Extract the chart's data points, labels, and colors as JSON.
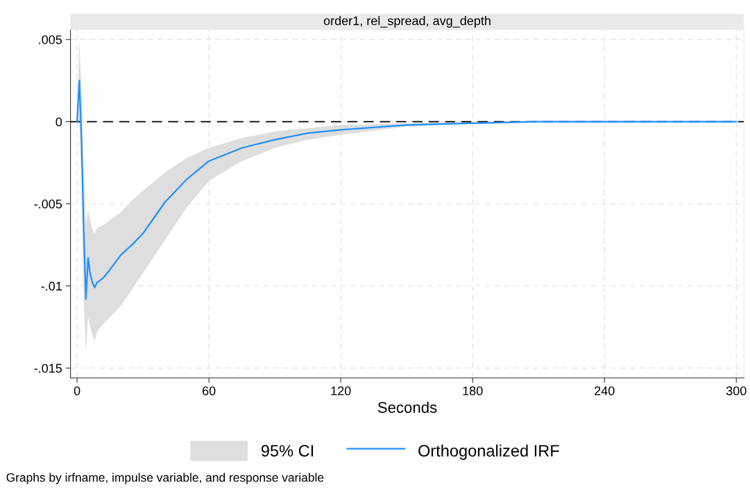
{
  "chart_data": {
    "type": "line",
    "title": "order1, rel_spread, avg_depth",
    "xlabel": "Seconds",
    "x": [
      0,
      1,
      2,
      3,
      4,
      5,
      6,
      7,
      8,
      9,
      10,
      12,
      15,
      20,
      25,
      30,
      40,
      50,
      60,
      75,
      90,
      105,
      120,
      150,
      180,
      210,
      240,
      270,
      300
    ],
    "series": [
      {
        "name": "Orthogonalized IRF",
        "color": "#1e90ff",
        "values": [
          0,
          0.0025,
          -0.001,
          -0.0065,
          -0.0108,
          -0.0083,
          -0.0093,
          -0.0098,
          -0.0101,
          -0.0098,
          -0.0097,
          -0.0095,
          -0.009,
          -0.0081,
          -0.0075,
          -0.0068,
          -0.0049,
          -0.0035,
          -0.0024,
          -0.0016,
          -0.0011,
          -0.0007,
          -0.0005,
          -0.0002,
          -0.0001,
          0,
          0,
          0,
          0
        ],
        "lower": [
          0,
          0,
          -0.004,
          -0.011,
          -0.0141,
          -0.0119,
          -0.0125,
          -0.013,
          -0.0134,
          -0.0128,
          -0.0126,
          -0.0123,
          -0.0119,
          -0.0112,
          -0.0102,
          -0.0092,
          -0.0072,
          -0.0052,
          -0.0036,
          -0.0024,
          -0.0016,
          -0.0011,
          -0.0008,
          -0.0003,
          -0.0001,
          0,
          0,
          0,
          0
        ],
        "upper": [
          0,
          0.005,
          0.002,
          -0.003,
          -0.0062,
          -0.0054,
          -0.006,
          -0.0066,
          -0.0068,
          -0.0065,
          -0.0064,
          -0.0063,
          -0.006,
          -0.0055,
          -0.0048,
          -0.0042,
          -0.0031,
          -0.0022,
          -0.0016,
          -0.001,
          -0.0006,
          -0.0004,
          -0.0002,
          -0.0001,
          0,
          0,
          0,
          0,
          0
        ]
      }
    ],
    "ref_lines": [
      {
        "axis": "y",
        "value": 0,
        "color": "#000000",
        "line_style": "dashed"
      }
    ],
    "xlim": [
      -3,
      303.5
    ],
    "ylim": [
      -0.0156,
      0.0056
    ],
    "xticks": [
      0,
      60,
      120,
      180,
      240,
      300
    ],
    "yticks": [
      {
        "value": -0.015,
        "label": "-.015"
      },
      {
        "value": -0.01,
        "label": "-.01"
      },
      {
        "value": -0.005,
        "label": "-.005"
      },
      {
        "value": 0,
        "label": "0"
      },
      {
        "value": 0.005,
        "label": ".005"
      }
    ],
    "grid": true,
    "legend": "bottom",
    "line_style": "solid",
    "annotations": [
      "95% CI",
      "Graphs by irfname, impulse variable, and response variable"
    ]
  }
}
